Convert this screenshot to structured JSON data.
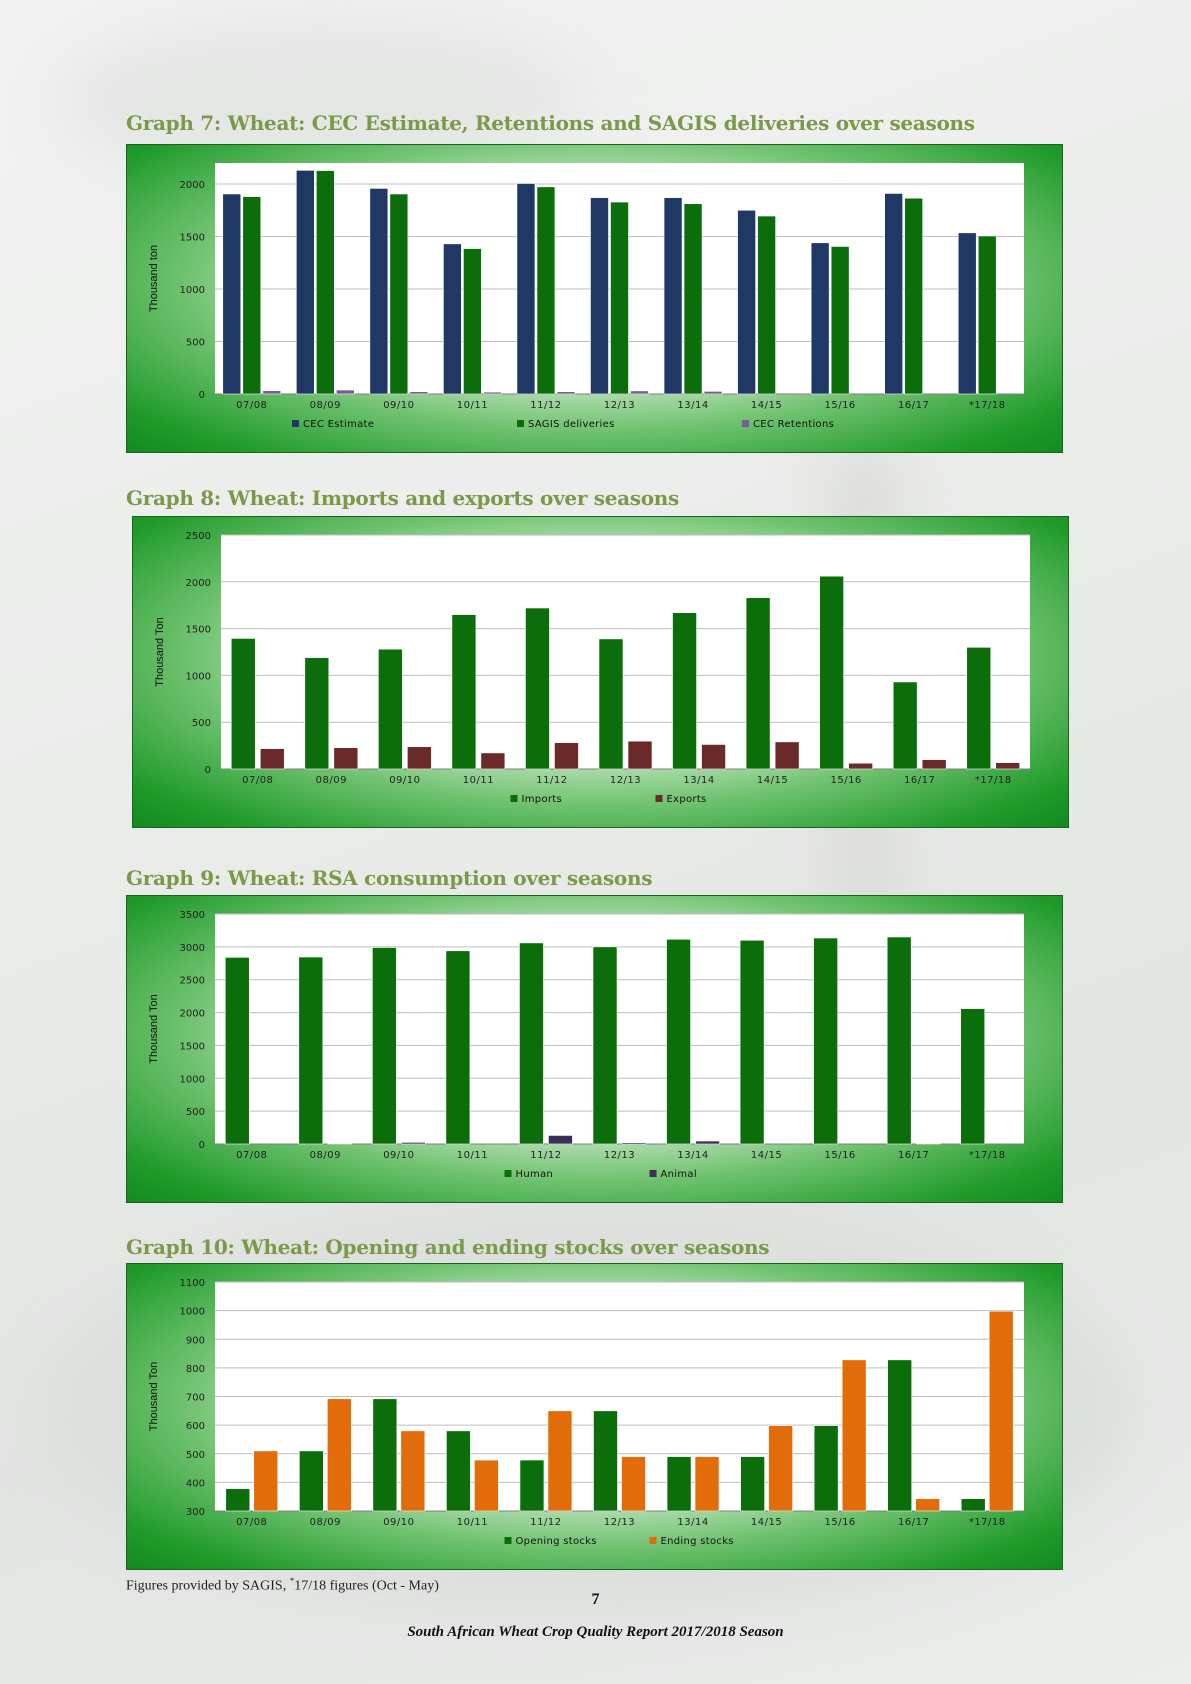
{
  "page": {
    "footnote_text": "Figures provided by SAGIS, ",
    "footnote_sup": "*",
    "footnote_rest": "17/18 figures (Oct - May)",
    "page_number": "7",
    "report_footer": "South African Wheat Crop Quality Report 2017/2018 Season"
  },
  "chart_data": [
    {
      "id": "graph7",
      "heading": "Graph 7: Wheat: CEC Estimate, Retentions and SAGIS deliveries over seasons",
      "type": "bar",
      "title": "",
      "xlabel": "",
      "ylabel": "Thousand ton",
      "ylim": [
        0,
        2200
      ],
      "yticks": [
        0,
        500,
        1000,
        1500,
        2000
      ],
      "grid": true,
      "legend_position": "bottom",
      "categories": [
        "07/08",
        "08/09",
        "09/10",
        "10/11",
        "11/12",
        "12/13",
        "13/14",
        "14/15",
        "15/16",
        "16/17",
        "*17/18"
      ],
      "series": [
        {
          "name": "CEC Estimate",
          "color": "#1f3864",
          "values": [
            1905,
            2130,
            1958,
            1430,
            2005,
            1870,
            1870,
            1750,
            1440,
            1910,
            1535
          ]
        },
        {
          "name": "SAGIS deliveries",
          "color": "#0b6e0b",
          "values": [
            1880,
            2128,
            1905,
            1385,
            1973,
            1828,
            1812,
            1695,
            1405,
            1865,
            1505
          ]
        },
        {
          "name": "CEC Retentions",
          "color": "#7a5a9a",
          "values": [
            32,
            38,
            22,
            18,
            22,
            30,
            25,
            0,
            0,
            0,
            0
          ]
        }
      ]
    },
    {
      "id": "graph8",
      "heading": "Graph 8: Wheat: Imports and exports over seasons",
      "type": "bar",
      "title": "",
      "xlabel": "",
      "ylabel": "Thousand Ton",
      "ylim": [
        0,
        2500
      ],
      "yticks": [
        0,
        500,
        1000,
        1500,
        2000,
        2500
      ],
      "grid": true,
      "legend_position": "bottom",
      "categories": [
        "07/08",
        "08/09",
        "09/10",
        "10/11",
        "11/12",
        "12/13",
        "13/14",
        "14/15",
        "15/16",
        "16/17",
        "*17/18"
      ],
      "series": [
        {
          "name": "Imports",
          "color": "#0b6e0b",
          "values": [
            1395,
            1190,
            1280,
            1650,
            1720,
            1390,
            1670,
            1830,
            2060,
            930,
            1300
          ]
        },
        {
          "name": "Exports",
          "color": "#6b2a2a",
          "values": [
            218,
            228,
            238,
            172,
            282,
            298,
            262,
            290,
            62,
            100,
            68
          ]
        }
      ]
    },
    {
      "id": "graph9",
      "heading": "Graph 9: Wheat: RSA consumption over seasons",
      "type": "bar",
      "title": "",
      "xlabel": "",
      "ylabel": "Thousand Ton",
      "ylim": [
        0,
        3500
      ],
      "yticks": [
        0,
        500,
        1000,
        1500,
        2000,
        2500,
        3000,
        3500
      ],
      "grid": true,
      "legend_position": "bottom",
      "categories": [
        "07/08",
        "08/09",
        "09/10",
        "10/11",
        "11/12",
        "12/13",
        "13/14",
        "14/15",
        "15/16",
        "16/17",
        "*17/18"
      ],
      "series": [
        {
          "name": "Human",
          "color": "#0b6e0b",
          "values": [
            2840,
            2845,
            2990,
            2940,
            3060,
            3000,
            3115,
            3100,
            3135,
            3150,
            2060
          ]
        },
        {
          "name": "Animal",
          "color": "#3a2f5a",
          "values": [
            0,
            8,
            25,
            0,
            130,
            20,
            45,
            0,
            0,
            5,
            0
          ]
        }
      ]
    },
    {
      "id": "graph10",
      "heading": "Graph 10: Wheat: Opening and ending stocks over seasons",
      "type": "bar",
      "title": "",
      "xlabel": "",
      "ylabel": "Thousand Ton",
      "ylim": [
        300,
        1100
      ],
      "yticks": [
        300,
        400,
        500,
        600,
        700,
        800,
        900,
        1000,
        1100
      ],
      "grid": true,
      "legend_position": "bottom",
      "categories": [
        "07/08",
        "08/09",
        "09/10",
        "10/11",
        "11/12",
        "12/13",
        "13/14",
        "14/15",
        "15/16",
        "16/17",
        "*17/18"
      ],
      "series": [
        {
          "name": "Opening stocks",
          "color": "#0b6e0b",
          "values": [
            378,
            510,
            692,
            580,
            478,
            650,
            490,
            490,
            598,
            828,
            343
          ]
        },
        {
          "name": "Ending stocks",
          "color": "#e36c0a",
          "values": [
            510,
            692,
            580,
            478,
            650,
            490,
            490,
            598,
            828,
            343,
            998
          ]
        }
      ]
    }
  ]
}
